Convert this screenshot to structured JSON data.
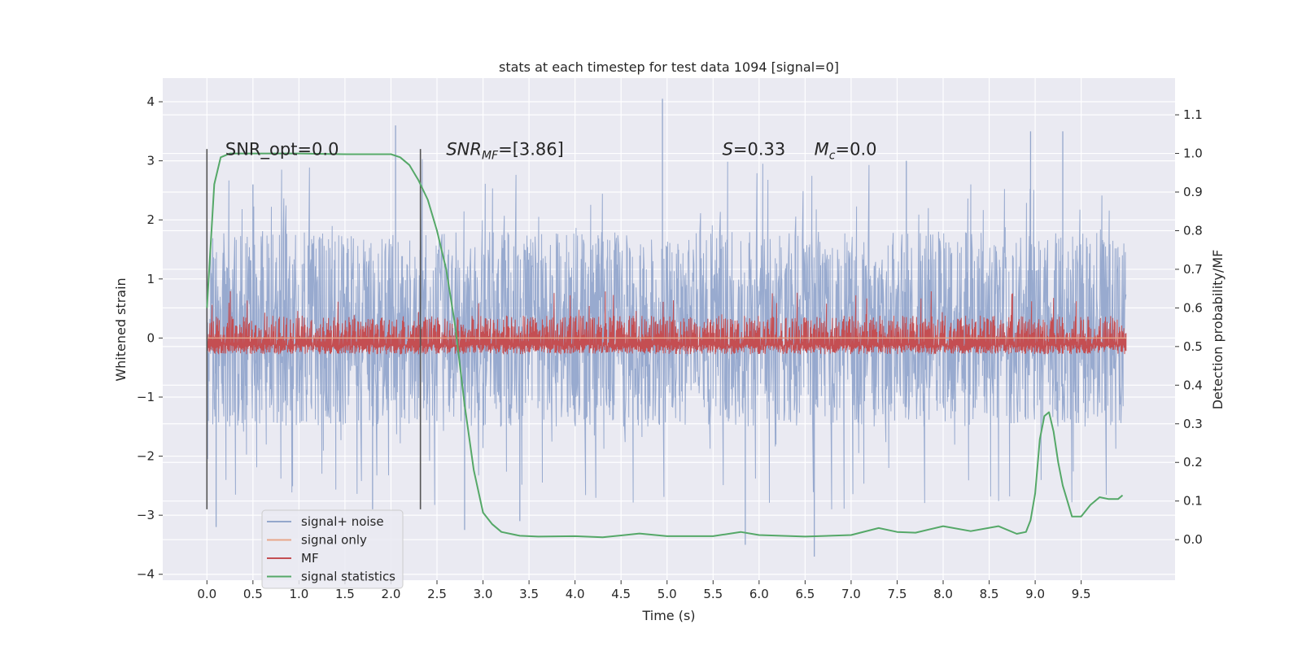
{
  "chart_data": {
    "type": "line",
    "title": "stats at each timestep for test data 1094 [signal=0]",
    "xlabel": "Time (s)",
    "ylabel": "Whitened strain",
    "y2label": "Detection probability/MF",
    "xlim": [
      -0.48,
      10.52
    ],
    "ylim": [
      -4.1,
      4.4
    ],
    "y2lim": [
      -0.105,
      1.195
    ],
    "xticks": [
      "0.0",
      "0.5",
      "1.0",
      "1.5",
      "2.0",
      "2.5",
      "3.0",
      "3.5",
      "4.0",
      "4.5",
      "5.0",
      "5.5",
      "6.0",
      "6.5",
      "7.0",
      "7.5",
      "8.0",
      "8.5",
      "9.0",
      "9.5"
    ],
    "yticks": [
      "−4",
      "−3",
      "−2",
      "−1",
      "0",
      "1",
      "2",
      "3",
      "4"
    ],
    "y2ticks": [
      "0.0",
      "0.1",
      "0.2",
      "0.3",
      "0.4",
      "0.5",
      "0.6",
      "0.7",
      "0.8",
      "0.9",
      "1.0",
      "1.1"
    ],
    "grid": true,
    "legend_position": "lower-left",
    "colors": {
      "background": "#eaeaf2",
      "grid": "#ffffff",
      "signal_noise": "#94a7cc",
      "signal_only": "#e8a68a",
      "mf": "#c44e52",
      "signal_statistics": "#55a868",
      "vlines": "#555555"
    },
    "series": [
      {
        "name": "signal+ noise",
        "axis": "left",
        "kind": "noise-band",
        "x_range": [
          0.0,
          9.99
        ],
        "typical_range": [
          -1.5,
          1.8
        ],
        "extremes": [
          -3.7,
          4.05
        ]
      },
      {
        "name": "signal only",
        "axis": "left",
        "x": [
          0.0,
          9.99
        ],
        "y": [
          0.0,
          0.0
        ]
      },
      {
        "name": "MF",
        "axis": "right",
        "kind": "noise-band",
        "x_range": [
          0.0,
          9.99
        ],
        "typical_range": [
          0.5,
          0.58
        ],
        "extremes": [
          0.48,
          0.65
        ]
      },
      {
        "name": "signal statistics",
        "axis": "right",
        "x": [
          0.0,
          0.08,
          0.15,
          0.25,
          0.5,
          1.0,
          1.5,
          2.0,
          2.1,
          2.2,
          2.3,
          2.4,
          2.5,
          2.6,
          2.7,
          2.8,
          2.9,
          3.0,
          3.1,
          3.2,
          3.4,
          3.6,
          4.0,
          4.3,
          4.7,
          5.0,
          5.5,
          5.8,
          6.0,
          6.5,
          7.0,
          7.3,
          7.5,
          7.7,
          8.0,
          8.3,
          8.6,
          8.8,
          8.9,
          8.95,
          9.0,
          9.05,
          9.1,
          9.15,
          9.2,
          9.25,
          9.3,
          9.35,
          9.4,
          9.5,
          9.6,
          9.7,
          9.8,
          9.9,
          9.95
        ],
        "y": [
          0.6,
          0.92,
          0.99,
          1.0,
          1.0,
          1.0,
          0.998,
          0.998,
          0.99,
          0.97,
          0.93,
          0.88,
          0.8,
          0.7,
          0.55,
          0.35,
          0.18,
          0.07,
          0.04,
          0.02,
          0.01,
          0.008,
          0.009,
          0.006,
          0.016,
          0.009,
          0.009,
          0.02,
          0.012,
          0.008,
          0.012,
          0.03,
          0.02,
          0.018,
          0.035,
          0.022,
          0.035,
          0.015,
          0.02,
          0.05,
          0.12,
          0.26,
          0.32,
          0.33,
          0.28,
          0.2,
          0.14,
          0.1,
          0.06,
          0.06,
          0.09,
          0.11,
          0.105,
          0.105,
          0.115
        ]
      }
    ],
    "vlines": [
      0.0,
      2.32
    ],
    "annotations": [
      {
        "label": "SNR_opt=0.0",
        "x": 0.2,
        "y": 1.0
      },
      {
        "label": "SNR",
        "sub": "MF",
        "rest": "=[3.86]",
        "x": 2.6,
        "y": 1.0
      },
      {
        "label": "S",
        "rest": "=0.33",
        "x": 5.6,
        "y": 1.0
      },
      {
        "label": "M",
        "sub": "c",
        "rest": "=0.0",
        "x": 6.6,
        "y": 1.0
      }
    ]
  }
}
